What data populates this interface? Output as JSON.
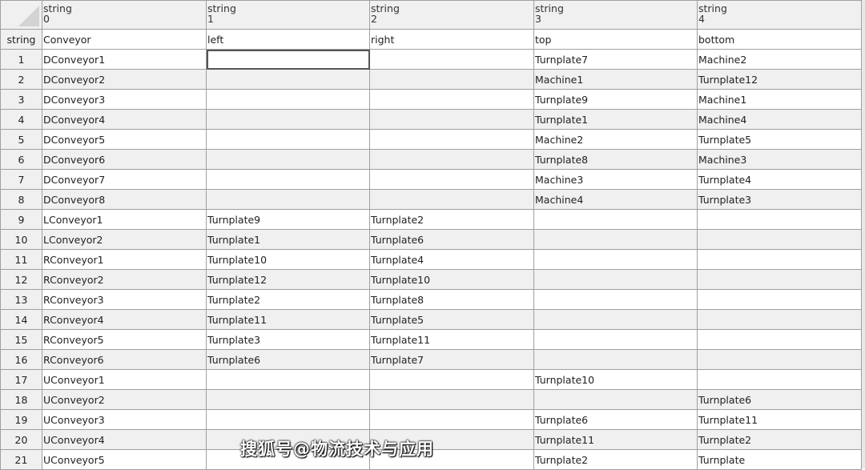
{
  "columns": [
    {
      "type": "string",
      "index": "0"
    },
    {
      "type": "string",
      "index": "1"
    },
    {
      "type": "string",
      "index": "2"
    },
    {
      "type": "string",
      "index": "3"
    },
    {
      "type": "string",
      "index": "4"
    }
  ],
  "type_row": {
    "label": "string",
    "values": [
      "Conveyor",
      "left",
      "right",
      "top",
      "bottom"
    ]
  },
  "rows": [
    [
      "1",
      "DConveyor1",
      "",
      "",
      "Turnplate7",
      "Machine2"
    ],
    [
      "2",
      "DConveyor2",
      "",
      "",
      "Machine1",
      "Turnplate12"
    ],
    [
      "3",
      "DConveyor3",
      "",
      "",
      "Turnplate9",
      "Machine1"
    ],
    [
      "4",
      "DConveyor4",
      "",
      "",
      "Turnplate1",
      "Machine4"
    ],
    [
      "5",
      "DConveyor5",
      "",
      "",
      "Machine2",
      "Turnplate5"
    ],
    [
      "6",
      "DConveyor6",
      "",
      "",
      "Turnplate8",
      "Machine3"
    ],
    [
      "7",
      "DConveyor7",
      "",
      "",
      "Machine3",
      "Turnplate4"
    ],
    [
      "8",
      "DConveyor8",
      "",
      "",
      "Machine4",
      "Turnplate3"
    ],
    [
      "9",
      "LConveyor1",
      "Turnplate9",
      "Turnplate2",
      "",
      ""
    ],
    [
      "10",
      "LConveyor2",
      "Turnplate1",
      "Turnplate6",
      "",
      ""
    ],
    [
      "11",
      "RConveyor1",
      "Turnplate10",
      "Turnplate4",
      "",
      ""
    ],
    [
      "12",
      "RConveyor2",
      "Turnplate12",
      "Turnplate10",
      "",
      ""
    ],
    [
      "13",
      "RConveyor3",
      "Turnplate2",
      "Turnplate8",
      "",
      ""
    ],
    [
      "14",
      "RConveyor4",
      "Turnplate11",
      "Turnplate5",
      "",
      ""
    ],
    [
      "15",
      "RConveyor5",
      "Turnplate3",
      "Turnplate11",
      "",
      ""
    ],
    [
      "16",
      "RConveyor6",
      "Turnplate6",
      "Turnplate7",
      "",
      ""
    ],
    [
      "17",
      "UConveyor1",
      "",
      "",
      "Turnplate10",
      ""
    ],
    [
      "18",
      "UConveyor2",
      "",
      "",
      "",
      "Turnplate6"
    ],
    [
      "19",
      "UConveyor3",
      "",
      "",
      "Turnplate6",
      "Turnplate11"
    ],
    [
      "20",
      "UConveyor4",
      "",
      "",
      "Turnplate11",
      "Turnplate2"
    ],
    [
      "21",
      "UConveyor5",
      "",
      "",
      "Turnplate2",
      "Turnplate"
    ]
  ],
  "watermark": "搜狐号@物流技术与应用"
}
